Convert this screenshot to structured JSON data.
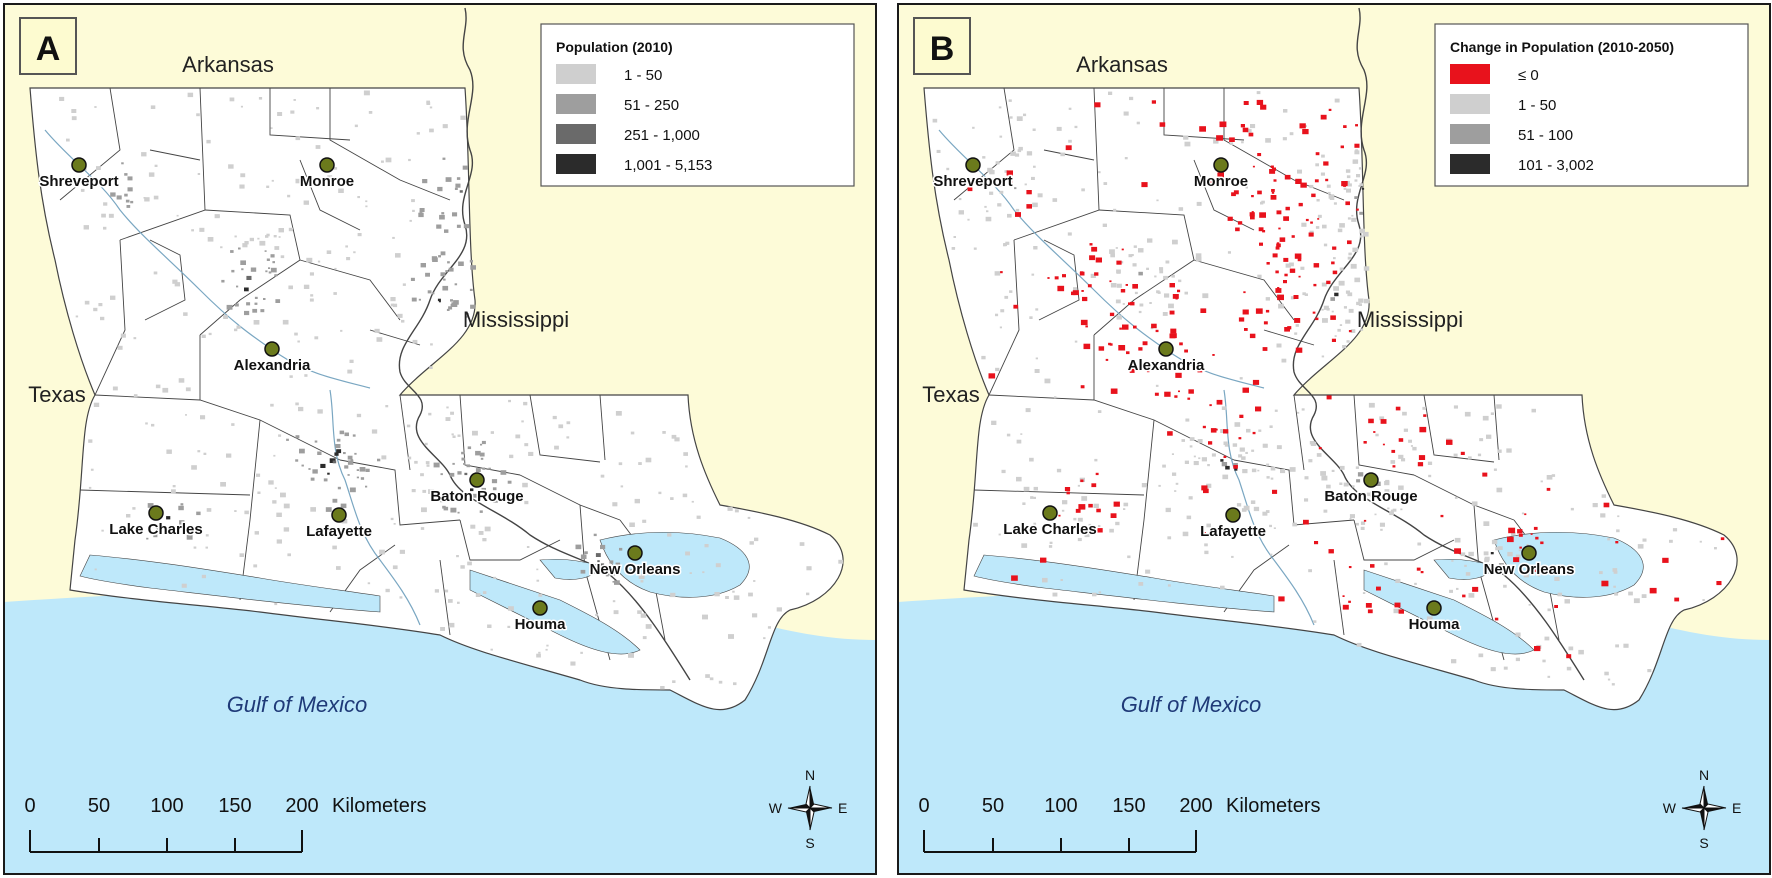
{
  "colors": {
    "land_neighbors": "#fdfbd8",
    "land_louisiana": "#ffffff",
    "water": "#bee8fa",
    "boundary": "#444444",
    "city_marker": "#6b7a1c",
    "label_box": "#fdfbd0",
    "pop_1": "#cfcfcf",
    "pop_2": "#9e9e9e",
    "pop_3": "#6a6a6a",
    "pop_4": "#2b2b2b",
    "decline": "#e8121c",
    "gulf_text": "#1f3a78"
  },
  "panels": [
    {
      "letter": "A",
      "legend": {
        "title": "Population (2010)",
        "entries": [
          "1 - 50",
          "51 - 250",
          "251 - 1,000",
          "1,001 - 5,153"
        ]
      }
    },
    {
      "letter": "B",
      "legend": {
        "title": "Change in Population (2010-2050)",
        "entries": [
          "≤ 0",
          "1 - 50",
          "51 - 100",
          "101 - 3,002"
        ]
      }
    }
  ],
  "states": {
    "arkansas": "Arkansas",
    "texas": "Texas",
    "mississippi": "Mississippi"
  },
  "gulf": "Gulf of Mexico",
  "cities": [
    "Shreveport",
    "Monroe",
    "Alexandria",
    "Baton Rouge",
    "Lake Charles",
    "Lafayette",
    "New Orleans",
    "Houma"
  ],
  "scale_bar": {
    "ticks": [
      "0",
      "50",
      "100",
      "150",
      "200"
    ],
    "unit": "Kilometers"
  },
  "compass": {
    "n": "N",
    "s": "S",
    "e": "E",
    "w": "W"
  }
}
